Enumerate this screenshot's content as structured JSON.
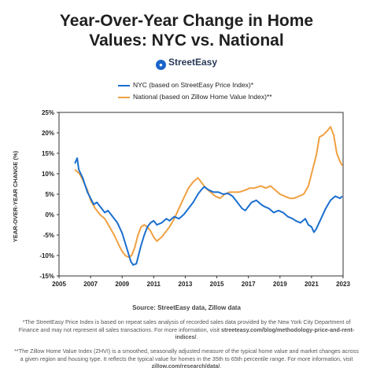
{
  "header": {
    "title_line1": "Year-Over-Year Change in Home",
    "title_line2": "Values: NYC vs. National",
    "brand": "StreetEasy",
    "brand_icon": "location-pin-icon"
  },
  "footer": {
    "source": "Source: StreetEasy data, Zillow data",
    "note1_text": "*The StreetEasy Price Index is based on repeat sales analysis of recorded sales data provided by the New York City Department of Finance and may not represent all sales transactions. For more information, visit ",
    "note1_link": "streeteasy.com/blog/methodology-price-and-rent-indices/",
    "note1_end": ".",
    "note2_text": "**The Zillow Home Value Index (ZHVI) is a smoothed, seasonally adjusted measure of the typical home value and market changes across a given region and housing type. It reflects the typical value for homes in the 35th to 65th percentile range. For more information, visit ",
    "note2_link": "zillow.com/research/data/",
    "note2_end": "."
  },
  "chart_data": {
    "type": "line",
    "title": "Year-Over-Year Change in Home Values: NYC vs. National",
    "xlabel": "",
    "ylabel": "YEAR-OVER-YEAR CHANGE (%)",
    "xlim": [
      2005,
      2023
    ],
    "ylim": [
      -15,
      25
    ],
    "x_ticks": [
      "2005",
      "2007",
      "2009",
      "2011",
      "2013",
      "2015",
      "2017",
      "2019",
      "2021",
      "2023"
    ],
    "y_ticks": [
      "25%",
      "20%",
      "15%",
      "10%",
      "5%",
      "0%",
      "-5%",
      "-10%",
      "-15%"
    ],
    "grid": false,
    "legend_position": "top-left",
    "series": [
      {
        "name": "NYC (based on StreetEasy Price Index)*",
        "color": "#1a6fcf",
        "points": [
          [
            2006.0,
            12.5
          ],
          [
            2006.15,
            13.8
          ],
          [
            2006.25,
            11.0
          ],
          [
            2006.5,
            9.0
          ],
          [
            2006.8,
            5.5
          ],
          [
            2007.0,
            4.0
          ],
          [
            2007.2,
            2.5
          ],
          [
            2007.4,
            3.0
          ],
          [
            2007.6,
            2.0
          ],
          [
            2007.9,
            0.5
          ],
          [
            2008.1,
            1.0
          ],
          [
            2008.4,
            -0.5
          ],
          [
            2008.7,
            -2.0
          ],
          [
            2009.0,
            -4.5
          ],
          [
            2009.2,
            -7.0
          ],
          [
            2009.4,
            -9.5
          ],
          [
            2009.55,
            -11.5
          ],
          [
            2009.7,
            -12.3
          ],
          [
            2009.9,
            -12.0
          ],
          [
            2010.0,
            -10.5
          ],
          [
            2010.2,
            -7.5
          ],
          [
            2010.4,
            -5.0
          ],
          [
            2010.6,
            -3.0
          ],
          [
            2010.8,
            -2.0
          ],
          [
            2011.0,
            -1.5
          ],
          [
            2011.2,
            -2.5
          ],
          [
            2011.5,
            -2.0
          ],
          [
            2011.8,
            -1.0
          ],
          [
            2012.0,
            -1.5
          ],
          [
            2012.3,
            -0.5
          ],
          [
            2012.6,
            -1.0
          ],
          [
            2012.9,
            0.0
          ],
          [
            2013.2,
            1.5
          ],
          [
            2013.5,
            3.0
          ],
          [
            2013.8,
            5.0
          ],
          [
            2014.0,
            6.0
          ],
          [
            2014.2,
            6.8
          ],
          [
            2014.5,
            6.0
          ],
          [
            2014.8,
            5.5
          ],
          [
            2015.1,
            5.5
          ],
          [
            2015.4,
            5.0
          ],
          [
            2015.7,
            5.2
          ],
          [
            2016.0,
            4.5
          ],
          [
            2016.3,
            3.0
          ],
          [
            2016.6,
            1.5
          ],
          [
            2016.8,
            1.0
          ],
          [
            2017.0,
            2.0
          ],
          [
            2017.2,
            3.0
          ],
          [
            2017.5,
            3.5
          ],
          [
            2017.8,
            2.5
          ],
          [
            2018.0,
            2.0
          ],
          [
            2018.3,
            1.5
          ],
          [
            2018.6,
            0.5
          ],
          [
            2018.9,
            1.0
          ],
          [
            2019.2,
            0.5
          ],
          [
            2019.5,
            -0.5
          ],
          [
            2019.8,
            -1.0
          ],
          [
            2020.0,
            -1.5
          ],
          [
            2020.3,
            -2.0
          ],
          [
            2020.6,
            -1.0
          ],
          [
            2020.8,
            -2.5
          ],
          [
            2021.0,
            -3.0
          ],
          [
            2021.15,
            -4.3
          ],
          [
            2021.3,
            -3.5
          ],
          [
            2021.6,
            -1.0
          ],
          [
            2021.9,
            1.5
          ],
          [
            2022.2,
            3.5
          ],
          [
            2022.5,
            4.5
          ],
          [
            2022.8,
            4.0
          ],
          [
            2022.95,
            4.5
          ]
        ]
      },
      {
        "name": "National (based on Zillow Home Value Index)**",
        "color": "#f0a040",
        "points": [
          [
            2006.0,
            11.0
          ],
          [
            2006.3,
            10.0
          ],
          [
            2006.5,
            8.5
          ],
          [
            2006.8,
            6.0
          ],
          [
            2007.0,
            3.5
          ],
          [
            2007.3,
            1.5
          ],
          [
            2007.6,
            0.0
          ],
          [
            2007.9,
            -1.0
          ],
          [
            2008.2,
            -3.0
          ],
          [
            2008.5,
            -5.0
          ],
          [
            2008.8,
            -7.5
          ],
          [
            2009.0,
            -9.0
          ],
          [
            2009.2,
            -10.0
          ],
          [
            2009.4,
            -10.4
          ],
          [
            2009.6,
            -10.0
          ],
          [
            2009.8,
            -8.0
          ],
          [
            2010.0,
            -5.0
          ],
          [
            2010.2,
            -3.0
          ],
          [
            2010.4,
            -2.5
          ],
          [
            2010.6,
            -3.0
          ],
          [
            2010.8,
            -4.0
          ],
          [
            2011.0,
            -5.5
          ],
          [
            2011.2,
            -6.5
          ],
          [
            2011.5,
            -5.5
          ],
          [
            2011.8,
            -4.0
          ],
          [
            2012.0,
            -3.0
          ],
          [
            2012.3,
            -1.0
          ],
          [
            2012.6,
            1.5
          ],
          [
            2012.9,
            4.0
          ],
          [
            2013.2,
            6.5
          ],
          [
            2013.5,
            8.0
          ],
          [
            2013.8,
            9.0
          ],
          [
            2014.0,
            8.0
          ],
          [
            2014.3,
            6.5
          ],
          [
            2014.6,
            5.5
          ],
          [
            2014.9,
            4.5
          ],
          [
            2015.2,
            4.0
          ],
          [
            2015.5,
            5.0
          ],
          [
            2015.8,
            5.5
          ],
          [
            2016.1,
            5.5
          ],
          [
            2016.4,
            5.5
          ],
          [
            2016.8,
            6.0
          ],
          [
            2017.1,
            6.5
          ],
          [
            2017.4,
            6.5
          ],
          [
            2017.8,
            7.0
          ],
          [
            2018.1,
            6.5
          ],
          [
            2018.4,
            7.0
          ],
          [
            2018.7,
            6.0
          ],
          [
            2019.0,
            5.0
          ],
          [
            2019.3,
            4.5
          ],
          [
            2019.6,
            4.0
          ],
          [
            2019.9,
            4.0
          ],
          [
            2020.2,
            4.5
          ],
          [
            2020.5,
            5.0
          ],
          [
            2020.8,
            7.0
          ],
          [
            2021.0,
            10.0
          ],
          [
            2021.3,
            14.5
          ],
          [
            2021.5,
            19.0
          ],
          [
            2021.75,
            19.5
          ],
          [
            2022.0,
            20.5
          ],
          [
            2022.2,
            21.5
          ],
          [
            2022.4,
            19.5
          ],
          [
            2022.6,
            15.0
          ],
          [
            2022.8,
            13.0
          ],
          [
            2022.95,
            12.0
          ]
        ]
      }
    ]
  }
}
